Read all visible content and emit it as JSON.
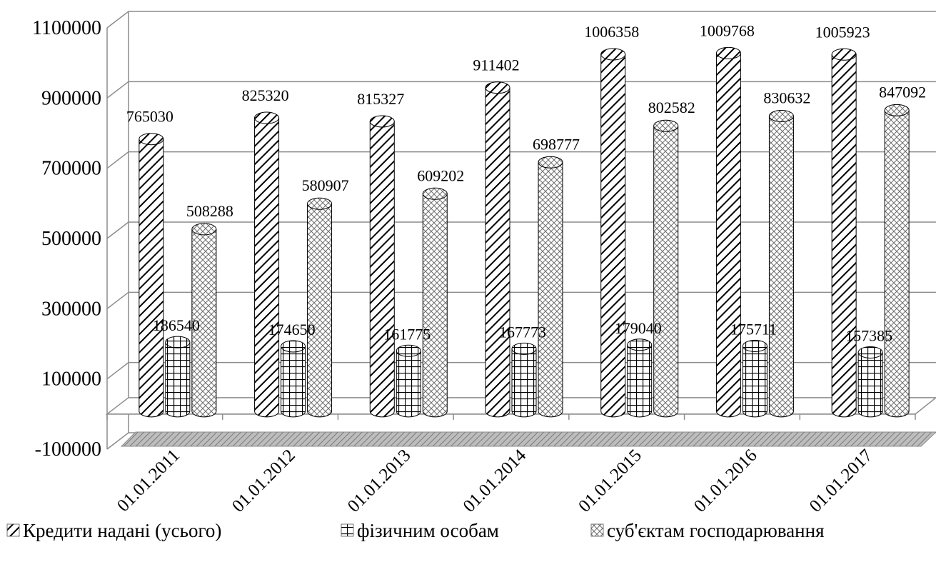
{
  "chart_data": {
    "type": "bar",
    "categories": [
      "01.01.2011",
      "01.01.2012",
      "01.01.2013",
      "01.01.2014",
      "01.01.2015",
      "01.01.2016",
      "01.01.2017"
    ],
    "series": [
      {
        "name": "Кредити надані (усього)",
        "values": [
          765030,
          825320,
          815327,
          911402,
          1006358,
          1009768,
          1005923
        ]
      },
      {
        "name": "фізичним особам",
        "values": [
          186540,
          174650,
          161775,
          167773,
          179040,
          175711,
          157385
        ]
      },
      {
        "name": "суб'єктам господарювання",
        "values": [
          508288,
          580907,
          609202,
          698777,
          802582,
          830632,
          847092
        ]
      }
    ],
    "y_ticks": [
      "1100000",
      "900000",
      "700000",
      "500000",
      "300000",
      "100000",
      "-100000"
    ],
    "ylim": [
      -100000,
      1100000
    ],
    "grid": true,
    "legend_position": "bottom",
    "style": "3d-clustered-cylinder"
  }
}
